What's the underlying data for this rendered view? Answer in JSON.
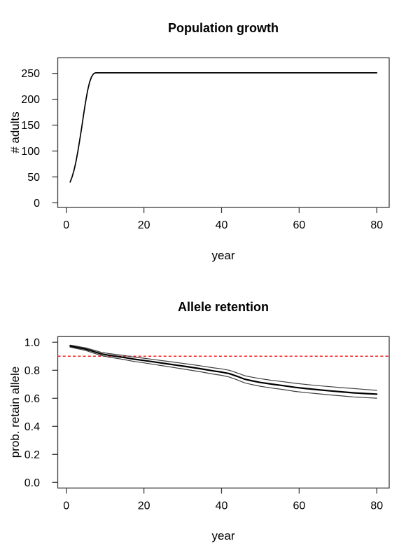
{
  "page": {
    "background": "#ffffff",
    "text_color": "#000000"
  },
  "axis_style": {
    "frame_color": "#3c3c3c",
    "tick_color": "#3c3c3c",
    "tick_length": 8
  },
  "chart_data": [
    {
      "type": "line",
      "title": "Population growth",
      "xlabel": "year",
      "ylabel": "# adults",
      "xlim": [
        -2.2,
        83.2
      ],
      "ylim": [
        -9,
        280
      ],
      "xticks": [
        "0",
        "20",
        "40",
        "60",
        "80"
      ],
      "yticks": [
        "0",
        "50",
        "100",
        "150",
        "200",
        "250"
      ],
      "grid": false,
      "legend": "none",
      "series": [
        {
          "name": "mean-number-of-adults",
          "color": "#000000",
          "width": 1.7,
          "x": [
            1,
            1.5,
            2,
            2.5,
            3,
            3.5,
            4,
            4.5,
            5,
            5.5,
            6,
            6.5,
            7,
            7.5,
            8,
            9,
            10,
            12,
            15,
            20,
            25,
            30,
            35,
            40,
            45,
            50,
            55,
            60,
            65,
            70,
            75,
            80
          ],
          "y": [
            40,
            50,
            63,
            80,
            100,
            123,
            147,
            172,
            196,
            217,
            233,
            243,
            249,
            251,
            251,
            251,
            251,
            251,
            251,
            251,
            251,
            251,
            251,
            251,
            251,
            251,
            251,
            251,
            251,
            251,
            251,
            251
          ]
        }
      ]
    },
    {
      "type": "line",
      "title": "Allele retention",
      "xlabel": "year",
      "ylabel": "prob. retain allele",
      "xlim": [
        -2.2,
        83.2
      ],
      "ylim": [
        -0.04,
        1.04
      ],
      "xticks": [
        "0",
        "20",
        "40",
        "60",
        "80"
      ],
      "yticks": [
        "0.0",
        "0.2",
        "0.4",
        "0.6",
        "0.8",
        "1.0"
      ],
      "grid": false,
      "legend": "none",
      "reference_line": {
        "y": 0.9,
        "color": "#ff1f1f",
        "style": "dashed",
        "width": 1.5
      },
      "series": [
        {
          "name": "upper-confidence-bound",
          "color": "#3d3d3d",
          "width": 1.2,
          "x": [
            1,
            3,
            5,
            7,
            9,
            11,
            13,
            15,
            17,
            20,
            23,
            26,
            29,
            32,
            35,
            38,
            40,
            42,
            44,
            46,
            48,
            50,
            53,
            56,
            59,
            62,
            65,
            68,
            71,
            74,
            77,
            80
          ],
          "y": [
            0.98,
            0.97,
            0.96,
            0.944,
            0.928,
            0.919,
            0.912,
            0.905,
            0.896,
            0.886,
            0.875,
            0.864,
            0.853,
            0.842,
            0.83,
            0.817,
            0.81,
            0.8,
            0.781,
            0.761,
            0.75,
            0.74,
            0.728,
            0.718,
            0.707,
            0.698,
            0.69,
            0.683,
            0.676,
            0.67,
            0.663,
            0.657
          ]
        },
        {
          "name": "mean-retention-probability",
          "color": "#000000",
          "width": 2.2,
          "x": [
            1,
            3,
            5,
            7,
            9,
            11,
            13,
            15,
            17,
            20,
            23,
            26,
            29,
            32,
            35,
            38,
            40,
            42,
            44,
            46,
            48,
            50,
            53,
            56,
            59,
            62,
            65,
            68,
            71,
            74,
            77,
            80
          ],
          "y": [
            0.973,
            0.962,
            0.951,
            0.934,
            0.917,
            0.907,
            0.899,
            0.891,
            0.881,
            0.87,
            0.858,
            0.846,
            0.834,
            0.822,
            0.809,
            0.795,
            0.787,
            0.776,
            0.757,
            0.736,
            0.724,
            0.713,
            0.701,
            0.69,
            0.678,
            0.669,
            0.661,
            0.653,
            0.646,
            0.639,
            0.634,
            0.63
          ]
        },
        {
          "name": "lower-confidence-bound",
          "color": "#3d3d3d",
          "width": 1.2,
          "x": [
            1,
            3,
            5,
            7,
            9,
            11,
            13,
            15,
            17,
            20,
            23,
            26,
            29,
            32,
            35,
            38,
            40,
            42,
            44,
            46,
            48,
            50,
            53,
            56,
            59,
            62,
            65,
            68,
            71,
            74,
            77,
            80
          ],
          "y": [
            0.965,
            0.953,
            0.941,
            0.923,
            0.905,
            0.894,
            0.885,
            0.876,
            0.865,
            0.853,
            0.84,
            0.827,
            0.814,
            0.801,
            0.787,
            0.772,
            0.764,
            0.752,
            0.732,
            0.71,
            0.697,
            0.686,
            0.673,
            0.662,
            0.649,
            0.64,
            0.632,
            0.624,
            0.617,
            0.61,
            0.605,
            0.601
          ]
        }
      ]
    }
  ]
}
